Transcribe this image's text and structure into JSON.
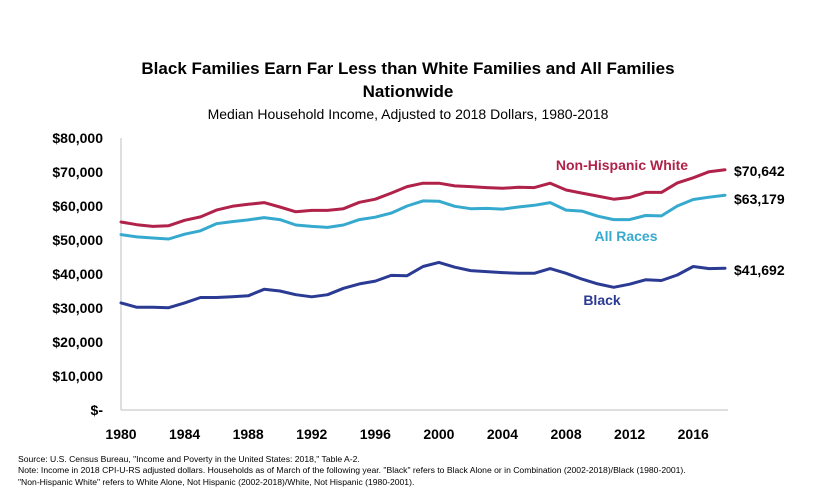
{
  "chart_data": {
    "type": "line",
    "title_line1": "Black Families Earn Far Less than White Families and All Families",
    "title_line2": "Nationwide",
    "subtitle": "Median Household Income, Adjusted to 2018 Dollars, 1980-2018",
    "x": [
      1980,
      1981,
      1982,
      1983,
      1984,
      1985,
      1986,
      1987,
      1988,
      1989,
      1990,
      1991,
      1992,
      1993,
      1994,
      1995,
      1996,
      1997,
      1998,
      1999,
      2000,
      2001,
      2002,
      2003,
      2004,
      2005,
      2006,
      2007,
      2008,
      2009,
      2010,
      2011,
      2012,
      2013,
      2014,
      2015,
      2016,
      2017,
      2018
    ],
    "xticks": [
      "1980",
      "1984",
      "1988",
      "1992",
      "1996",
      "2000",
      "2004",
      "2008",
      "2012",
      "2016"
    ],
    "xtick_values": [
      1980,
      1984,
      1988,
      1992,
      1996,
      2000,
      2004,
      2008,
      2012,
      2016
    ],
    "ylim": [
      0,
      80000
    ],
    "yticks": [
      "$-",
      "$10,000",
      "$20,000",
      "$30,000",
      "$40,000",
      "$50,000",
      "$60,000",
      "$70,000",
      "$80,000"
    ],
    "ytick_values": [
      0,
      10000,
      20000,
      30000,
      40000,
      50000,
      60000,
      70000,
      80000
    ],
    "series": [
      {
        "name": "Non-Hispanic White",
        "color": "#b0224a",
        "end_label": "$70,642",
        "values": [
          55300,
          54500,
          54000,
          54200,
          55800,
          56800,
          58800,
          59900,
          60500,
          61000,
          59700,
          58300,
          58700,
          58700,
          59200,
          61100,
          62000,
          63800,
          65700,
          66700,
          66700,
          65900,
          65700,
          65400,
          65200,
          65500,
          65400,
          66700,
          64700,
          63800,
          62900,
          62000,
          62500,
          64000,
          64000,
          66800,
          68300,
          70100,
          70642
        ]
      },
      {
        "name": "All Races",
        "color": "#36a9ce",
        "end_label": "$63,179",
        "values": [
          51600,
          50900,
          50600,
          50300,
          51700,
          52700,
          54800,
          55400,
          55900,
          56600,
          56000,
          54400,
          54000,
          53700,
          54400,
          56000,
          56700,
          57900,
          60000,
          61500,
          61400,
          59900,
          59200,
          59300,
          59100,
          59700,
          60200,
          61000,
          58800,
          58500,
          57000,
          56000,
          56000,
          57200,
          57100,
          60000,
          61900,
          62600,
          63179
        ]
      },
      {
        "name": "Black",
        "color": "#2b3a93",
        "end_label": "$41,692",
        "values": [
          31500,
          30200,
          30200,
          30100,
          31500,
          33100,
          33100,
          33300,
          33600,
          35500,
          35000,
          33900,
          33300,
          33900,
          35800,
          37100,
          37900,
          39600,
          39500,
          42200,
          43400,
          42000,
          41000,
          40700,
          40400,
          40200,
          40200,
          41600,
          40200,
          38500,
          37100,
          36100,
          37000,
          38300,
          38100,
          39700,
          42200,
          41600,
          41692
        ]
      }
    ]
  },
  "notes": {
    "source": "Source: U.S. Census Bureau, \"Income and Poverty in the United States: 2018,\" Table A-2.",
    "note1": "Note: Income in 2018 CPI-U-RS adjusted dollars. Households as of March of the following year. \"Black\" refers to Black Alone or in Combination (2002-2018)/Black (1980-2001).",
    "note2": "\"Non-Hispanic White\" refers to White Alone, Not Hispanic (2002-2018)/White, Not Hispanic (1980-2001)."
  }
}
